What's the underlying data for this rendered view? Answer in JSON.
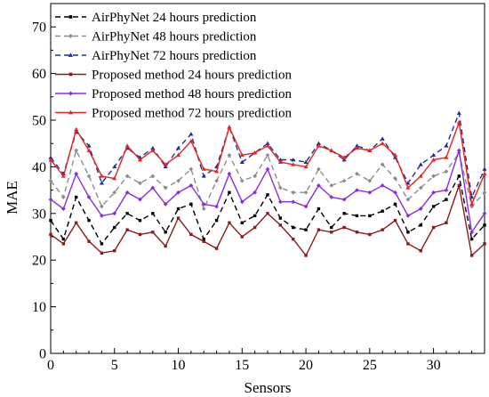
{
  "chart_data": {
    "type": "line",
    "title": "",
    "xlabel": "Sensors",
    "ylabel": "MAE",
    "xlim": [
      0,
      34
    ],
    "ylim": [
      0,
      75
    ],
    "x_ticks": [
      0,
      5,
      10,
      15,
      20,
      25,
      30
    ],
    "y_ticks": [
      0,
      10,
      20,
      30,
      40,
      50,
      60,
      70
    ],
    "grid": false,
    "legend_position": "top-left",
    "x": [
      0,
      1,
      2,
      3,
      4,
      5,
      6,
      7,
      8,
      9,
      10,
      11,
      12,
      13,
      14,
      15,
      16,
      17,
      18,
      19,
      20,
      21,
      22,
      23,
      24,
      25,
      26,
      27,
      28,
      29,
      30,
      31,
      32,
      33,
      34
    ],
    "series": [
      {
        "name": "AirPhyNet 24 hours prediction",
        "color": "#000000",
        "dash": "dashed",
        "marker": "square",
        "values": [
          28.5,
          24.5,
          33.5,
          28.5,
          23.5,
          27.0,
          30.0,
          28.5,
          30.0,
          26.0,
          31.0,
          32.0,
          24.5,
          28.5,
          34.5,
          28.0,
          29.5,
          34.0,
          29.0,
          27.0,
          26.5,
          31.0,
          27.0,
          30.0,
          29.5,
          29.5,
          30.5,
          32.0,
          26.0,
          27.5,
          31.5,
          33.0,
          38.0,
          24.5,
          27.5
        ]
      },
      {
        "name": "AirPhyNet 48 hours prediction",
        "color": "#8c8c8c",
        "dash": "dashed",
        "marker": "diamond",
        "values": [
          37.0,
          33.5,
          43.5,
          38.0,
          31.5,
          34.5,
          38.0,
          36.5,
          38.0,
          35.5,
          37.0,
          39.5,
          31.0,
          37.0,
          42.5,
          37.0,
          38.0,
          42.5,
          35.5,
          34.5,
          34.5,
          39.5,
          36.0,
          37.0,
          38.5,
          37.0,
          40.5,
          37.5,
          33.0,
          35.5,
          38.0,
          39.0,
          43.0,
          31.5,
          34.5
        ]
      },
      {
        "name": "AirPhyNet 72 hours prediction",
        "color": "#1e2ea0",
        "dash": "dashed",
        "marker": "triangle",
        "values": [
          42.0,
          38.5,
          47.5,
          44.5,
          36.5,
          40.0,
          44.0,
          42.0,
          44.0,
          40.0,
          44.0,
          47.0,
          38.0,
          40.0,
          48.5,
          41.0,
          43.0,
          45.0,
          41.5,
          41.5,
          41.0,
          45.0,
          43.5,
          41.5,
          44.5,
          43.5,
          46.0,
          42.0,
          36.5,
          40.5,
          42.5,
          44.5,
          51.5,
          33.5,
          39.5
        ]
      },
      {
        "name": "Proposed method 24 hours prediction",
        "color": "#8b1a1a",
        "dash": "solid",
        "marker": "square",
        "values": [
          25.5,
          23.5,
          28.0,
          24.0,
          21.5,
          22.0,
          26.5,
          25.5,
          26.0,
          23.0,
          29.0,
          25.5,
          24.0,
          22.5,
          28.0,
          25.0,
          27.0,
          30.0,
          27.5,
          24.5,
          21.0,
          26.5,
          26.0,
          27.0,
          26.0,
          25.5,
          26.5,
          28.5,
          23.5,
          22.0,
          27.0,
          28.0,
          36.0,
          21.0,
          23.5
        ]
      },
      {
        "name": "Proposed method 48 hours prediction",
        "color": "#8a2be2",
        "dash": "solid",
        "marker": "diamond",
        "values": [
          33.0,
          31.0,
          38.5,
          33.5,
          29.5,
          30.0,
          34.5,
          33.0,
          35.5,
          32.0,
          34.5,
          36.0,
          32.0,
          31.5,
          38.5,
          32.5,
          34.5,
          39.5,
          32.5,
          32.5,
          31.5,
          36.0,
          33.5,
          33.0,
          35.0,
          34.5,
          36.0,
          34.5,
          29.5,
          31.0,
          34.5,
          35.0,
          43.5,
          26.0,
          30.0
        ]
      },
      {
        "name": "Proposed method 72 hours prediction",
        "color": "#e8231a",
        "dash": "solid",
        "marker": "triangle",
        "values": [
          41.5,
          38.0,
          48.0,
          43.5,
          38.0,
          37.5,
          44.5,
          41.5,
          43.5,
          40.5,
          42.5,
          45.5,
          39.5,
          39.0,
          48.5,
          42.5,
          43.0,
          44.5,
          41.0,
          40.5,
          40.0,
          44.5,
          43.5,
          42.0,
          44.0,
          43.5,
          45.0,
          42.5,
          35.5,
          38.0,
          41.5,
          42.0,
          49.5,
          32.0,
          38.5
        ]
      }
    ]
  }
}
